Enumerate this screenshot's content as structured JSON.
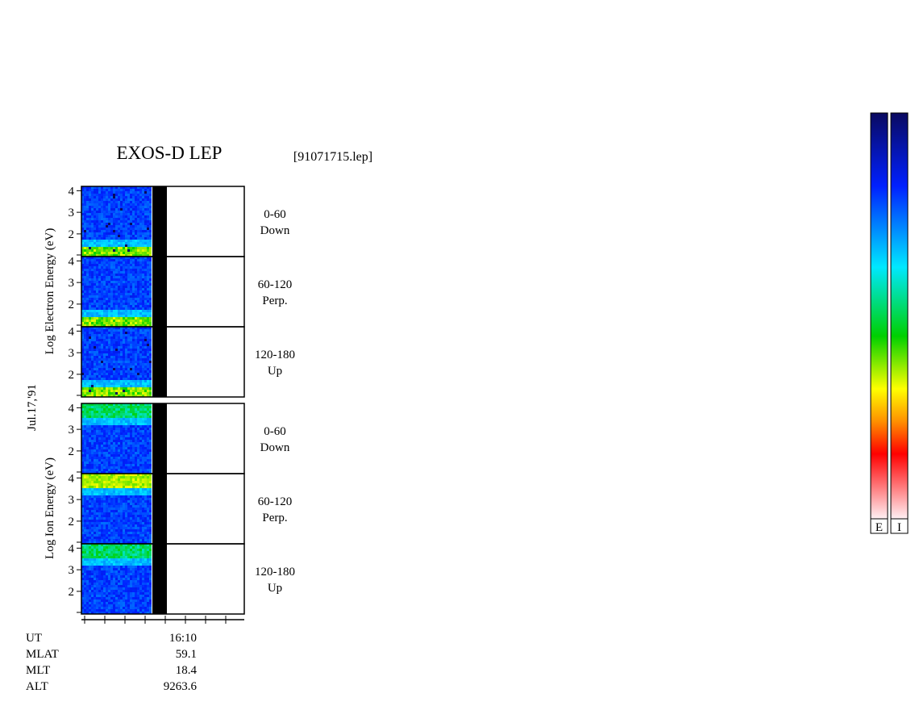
{
  "title": "EXOS-D LEP",
  "file": "[91071715.lep]",
  "date": "Jul.17,'91",
  "yticks": [
    2,
    3,
    4
  ],
  "ylim": [
    0.95,
    4.2
  ],
  "groups": [
    {
      "y_label": "Log Electron Energy (eV)",
      "panels": [
        {
          "angle": "0-60",
          "direction": "Down"
        },
        {
          "angle": "60-120",
          "direction": "Perp."
        },
        {
          "angle": "120-180",
          "direction": "Up"
        }
      ]
    },
    {
      "y_label": "Log Ion Energy (eV)",
      "panels": [
        {
          "angle": "0-60",
          "direction": "Down"
        },
        {
          "angle": "60-120",
          "direction": "Perp."
        },
        {
          "angle": "120-180",
          "direction": "Up"
        }
      ]
    }
  ],
  "orbit": [
    {
      "label": "UT",
      "value": "16:10"
    },
    {
      "label": "MLAT",
      "value": "59.1"
    },
    {
      "label": "MLT",
      "value": "18.4"
    },
    {
      "label": "ALT",
      "value": "9263.6"
    }
  ],
  "colorbars": [
    "E",
    "I"
  ]
}
